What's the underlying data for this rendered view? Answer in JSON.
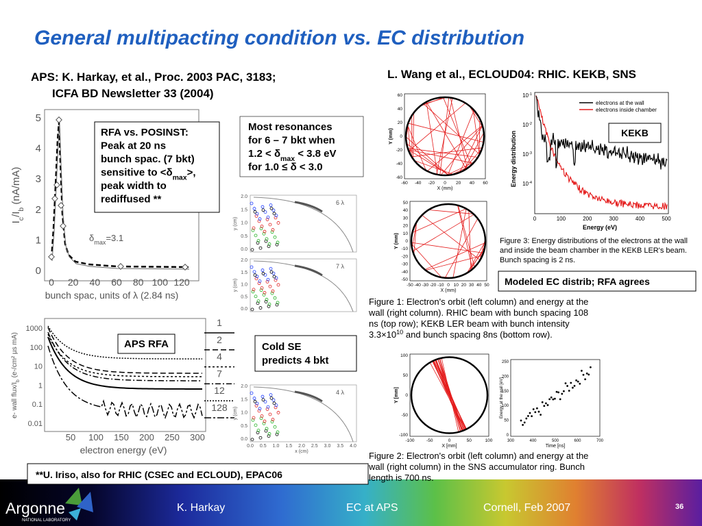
{
  "title": "General multipacting condition vs. EC distribution",
  "citations": {
    "left": [
      "APS: K. Harkay, et al., Proc. 2003 PAC, 3183;",
      "ICFA BD Newsletter 33 (2004)"
    ],
    "right": "L. Wang et al., ECLOUD04: RHIC. KEKB, SNS"
  },
  "notes": {
    "rfa_posinst": [
      "RFA vs. POSINST:",
      "Peak at 20 ns",
      "bunch spac. (7 bkt)",
      [
        "sensitive to <δ",
        "max",
        ">,"
      ],
      "peak width to",
      "rediffused **"
    ],
    "resonances": [
      "Most resonances",
      "for 6 – 7 bkt when",
      [
        "1.2 < δ",
        "max",
        " < 3.8 eV"
      ],
      "for 1.0 ≤ δ < 3.0"
    ],
    "aps_rfa": "APS RFA",
    "cold_se": [
      "Cold SE",
      "predicts 4 bkt"
    ],
    "kekb": "KEKB",
    "modeled": "Modeled EC distrib; RFA agrees",
    "footnote": "**U. Iriso, also for RHIC (CSEC and ECLOUD), EPAC06"
  },
  "plots": {
    "bunch_spacing": {
      "yticks": [
        "0",
        "1",
        "2",
        "3",
        "4",
        "5"
      ],
      "xticks": [
        "0",
        "20",
        "40",
        "60",
        "80",
        "100",
        "120"
      ],
      "ylabel": [
        "I",
        "c",
        "/I",
        "b",
        "  (nA/mA)"
      ],
      "xlabel": "bunch spac, units of λ (2.84 ns)",
      "annotation": [
        "δ",
        "max",
        "=3.1"
      ]
    },
    "wall_flux": {
      "yticks": [
        "1000",
        "100",
        "10",
        "1",
        "0.1",
        "0.01"
      ],
      "xticks": [
        "50",
        "100",
        "150",
        "200",
        "250",
        "300"
      ],
      "ylabel": [
        "e- wall flux/I",
        "b",
        " (e-/cm² µs mA)"
      ],
      "xlabel": "electron energy (eV)",
      "legend": [
        "1",
        "2",
        "4",
        "7",
        "12",
        "128"
      ]
    },
    "orbit_6": {
      "label": "6 λ",
      "yticks": [
        "2.0",
        "1.5",
        "1.0",
        "0.5",
        "0.0"
      ],
      "ylabel": "y (cm)"
    },
    "orbit_7": {
      "label": "7 λ",
      "yticks": [
        "2.0",
        "1.5",
        "1.0",
        "0.5",
        "0.0"
      ],
      "ylabel": "y (cm)"
    },
    "orbit_4": {
      "label": "4 λ",
      "yticks": [
        "2.0",
        "1.5",
        "1.0",
        "0.5",
        "0.0"
      ],
      "ylabel": "y (cm)",
      "xticks": [
        "0.0",
        "0.5",
        "1.0",
        "1.5",
        "2.0",
        "2.5",
        "3.0",
        "3.5",
        "4.0"
      ],
      "xlabel": "x (cm)"
    },
    "rhic_orbit": {
      "yticks": [
        "60",
        "40",
        "20",
        "0",
        "-20",
        "-40",
        "-60"
      ],
      "xticks": [
        "-60",
        "-40",
        "-20",
        "0",
        "20",
        "40",
        "60"
      ],
      "ylabel": "Y (mm)",
      "xlabel": "X (mm)"
    },
    "kekb_orbit": {
      "yticks": [
        "50",
        "40",
        "30",
        "20",
        "10",
        "0",
        "-10",
        "-20",
        "-30",
        "-40",
        "-50"
      ],
      "xticks": [
        "-50",
        "-40",
        "-30",
        "-20",
        "-10",
        "0",
        "10",
        "20",
        "30",
        "40",
        "50"
      ],
      "ylabel": "Y (mm)",
      "xlabel": "X (mm)"
    },
    "sns_orbit": {
      "yticks": [
        "100",
        "50",
        "0",
        "-50",
        "-100"
      ],
      "xticks": [
        "-100",
        "-50",
        "0",
        "50",
        "100"
      ],
      "ylabel": "Y [mm]",
      "xlabel": "X [mm]"
    },
    "sns_energy": {
      "yticks": [
        "250",
        "200",
        "150",
        "100",
        "50",
        "0"
      ],
      "xticks": [
        "300",
        "400",
        "500",
        "600",
        "700"
      ],
      "ylabel": "Energy at the wall [eV]",
      "xlabel": "Time [ns]"
    },
    "kekb_energy": {
      "yticks": [
        [
          "10",
          "-1"
        ],
        [
          "10",
          "-2"
        ],
        [
          "10",
          "-3"
        ],
        [
          "10",
          "-4"
        ]
      ],
      "xticks": [
        "0",
        "100",
        "200",
        "300",
        "400",
        "500"
      ],
      "ylabel": "Energy distribution",
      "xlabel": "Energy (eV)",
      "legend": [
        "electrons at the wall",
        "electrons inside chamber"
      ]
    }
  },
  "captions": {
    "figure3": [
      "Figure 3: Energy distributions of the electrons at the wall",
      "and inside the beam chamber in the KEKB LER's beam.",
      "Bunch spacing is 2 ns."
    ],
    "figure1": [
      "Figure 1: Electron's orbit (left column) and energy at the",
      "wall (right column). RHIC beam with bunch spacing 108",
      "ns (top row); KEKB LER beam with bunch intensity",
      [
        "3.3×10",
        "10",
        " and bunch spacing 8ns (bottom row)."
      ]
    ],
    "figure2": [
      "Figure 2: Electron's orbit (left column) and energy at the",
      "wall (right column) in the SNS accumulator ring. Bunch",
      "length is 700 ns."
    ]
  },
  "footer": {
    "logo": "Argonne",
    "logo_sub": "NATIONAL LABORATORY",
    "author": "K. Harkay",
    "topic": "EC at APS",
    "venue": "Cornell, Feb 2007",
    "page": "36"
  }
}
